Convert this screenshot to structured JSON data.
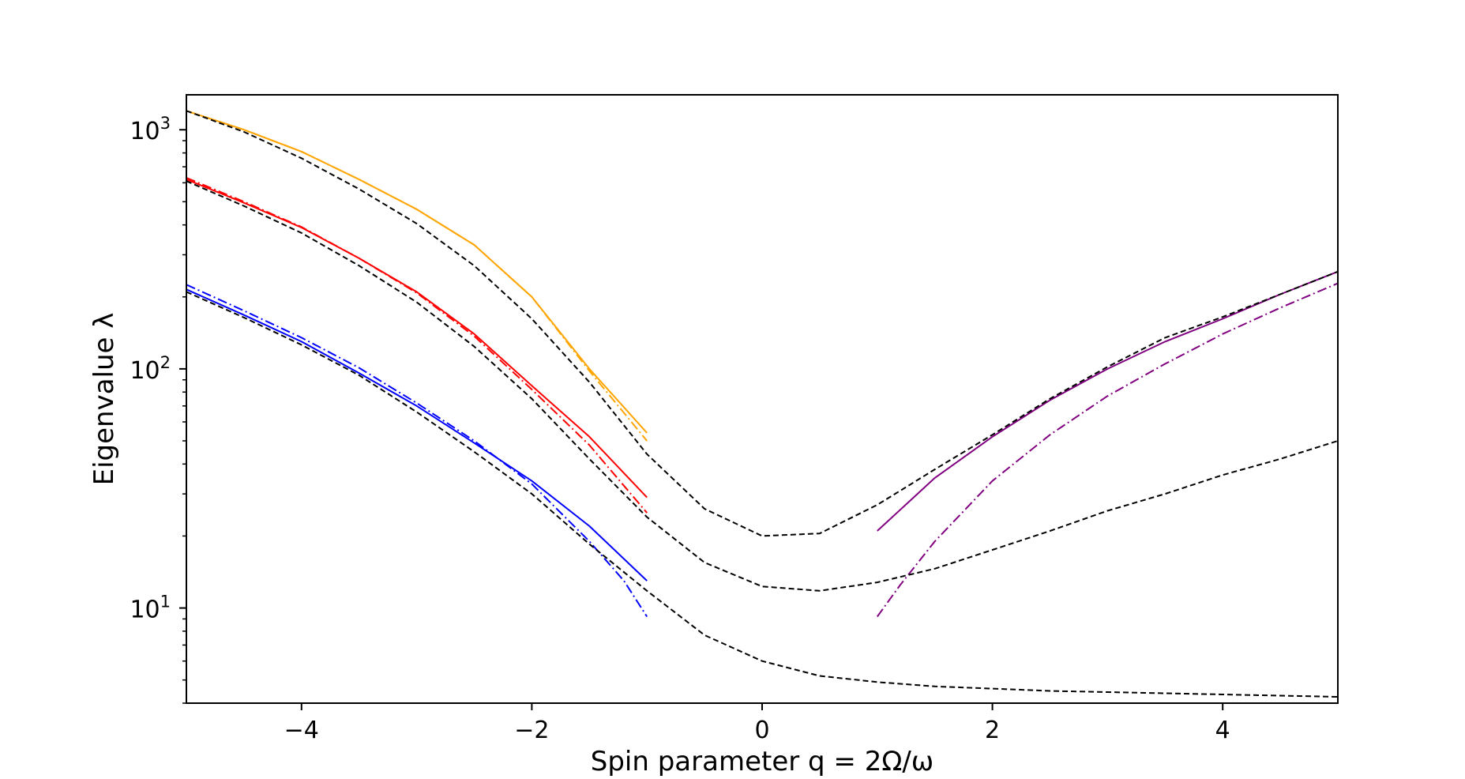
{
  "chart_data": {
    "type": "line",
    "title": "",
    "xlabel": "Spin parameter q = 2Ω/ω",
    "ylabel": "Eigenvalue λ",
    "xlim": [
      -5,
      5
    ],
    "ylim": [
      4,
      1400
    ],
    "yscale": "log",
    "grid": false,
    "x_ticks": [
      {
        "value": -4,
        "label": "−4"
      },
      {
        "value": -2,
        "label": "−2"
      },
      {
        "value": 0,
        "label": "0"
      },
      {
        "value": 2,
        "label": "2"
      },
      {
        "value": 4,
        "label": "4"
      }
    ],
    "y_ticks": [
      {
        "value": 10,
        "base": "10",
        "exp": "1"
      },
      {
        "value": 100,
        "base": "10",
        "exp": "2"
      },
      {
        "value": 1000,
        "base": "10",
        "exp": "3"
      }
    ],
    "colors": {
      "orange": "#ffa500",
      "red": "#ff0000",
      "blue": "#0000ff",
      "purple": "#800080",
      "black": "#000000"
    },
    "series": [
      {
        "color": "orange",
        "style": "solid",
        "x": [
          -5,
          -4.5,
          -4,
          -3.5,
          -3,
          -2.5,
          -2,
          -1.5,
          -1
        ],
        "y": [
          1200,
          1000,
          810,
          620,
          465,
          330,
          200,
          100,
          54
        ]
      },
      {
        "color": "orange",
        "style": "dashdot",
        "x": [
          -5,
          -4.5,
          -4,
          -3.5,
          -3,
          -2.5,
          -2,
          -1.5,
          -1
        ],
        "y": [
          1200,
          1000,
          810,
          620,
          465,
          330,
          200,
          98,
          50
        ]
      },
      {
        "color": "red",
        "style": "solid",
        "x": [
          -5,
          -4.5,
          -4,
          -3.5,
          -3,
          -2.5,
          -2,
          -1.5,
          -1
        ],
        "y": [
          620,
          495,
          390,
          290,
          210,
          140,
          85,
          52,
          29
        ]
      },
      {
        "color": "red",
        "style": "dashdot",
        "x": [
          -5,
          -4.5,
          -4,
          -3.5,
          -3,
          -2.5,
          -2,
          -1.5,
          -1
        ],
        "y": [
          630,
          500,
          392,
          290,
          208,
          137,
          82,
          48,
          25
        ]
      },
      {
        "color": "blue",
        "style": "solid",
        "x": [
          -5,
          -4.5,
          -4,
          -3.5,
          -3,
          -2.5,
          -2,
          -1.5,
          -1
        ],
        "y": [
          215,
          168,
          130,
          96,
          70,
          49,
          34,
          22,
          13
        ]
      },
      {
        "color": "blue",
        "style": "dashdot",
        "x": [
          -5,
          -4.5,
          -4,
          -3.5,
          -3,
          -2.5,
          -2,
          -1.5,
          -1.2,
          -1
        ],
        "y": [
          225,
          175,
          135,
          101,
          72,
          50,
          33,
          19,
          13,
          9.2
        ]
      },
      {
        "color": "purple",
        "style": "solid",
        "x": [
          1,
          1.5,
          2,
          2.5,
          3,
          3.5,
          4,
          4.5,
          5
        ],
        "y": [
          21,
          35,
          52,
          74,
          100,
          130,
          162,
          205,
          255
        ]
      },
      {
        "color": "purple",
        "style": "dashdot",
        "x": [
          1,
          1.2,
          1.5,
          2,
          2.5,
          3,
          3.5,
          4,
          4.5,
          5
        ],
        "y": [
          9.2,
          12.5,
          19,
          34,
          53,
          77,
          105,
          140,
          180,
          228
        ]
      },
      {
        "color": "black",
        "style": "dashed",
        "x": [
          -5,
          -4.5,
          -4,
          -3.5,
          -3,
          -2.5,
          -2,
          -1.5,
          -1,
          -0.5,
          0,
          0.5,
          1,
          1.5,
          2,
          2.5,
          3,
          3.5,
          4,
          4.5,
          5
        ],
        "y": [
          1200,
          980,
          760,
          565,
          405,
          270,
          162,
          88,
          44,
          26,
          20,
          20.5,
          27,
          38,
          53,
          75,
          102,
          135,
          165,
          205,
          255
        ]
      },
      {
        "color": "black",
        "style": "dashed",
        "x": [
          -5,
          -4.5,
          -4,
          -3.5,
          -3,
          -2.5,
          -2,
          -1.5,
          -1,
          -0.5,
          0,
          0.5,
          1,
          1.5,
          2,
          2.5,
          3,
          3.5,
          4,
          4.5,
          5
        ],
        "y": [
          610,
          480,
          370,
          270,
          190,
          124,
          75,
          42,
          24,
          15.5,
          12.3,
          11.8,
          12.8,
          14.6,
          17.5,
          21,
          25.5,
          30,
          36,
          42,
          50
        ]
      },
      {
        "color": "black",
        "style": "dashed",
        "x": [
          -5,
          -4.5,
          -4,
          -3.5,
          -3,
          -2.5,
          -2,
          -1.5,
          -1,
          -0.5,
          0,
          0.5,
          1,
          1.5,
          2,
          2.5,
          3,
          3.5,
          4,
          4.5,
          5
        ],
        "y": [
          210,
          164,
          126,
          94,
          66,
          45,
          30,
          18.5,
          11.8,
          7.7,
          6,
          5.2,
          4.9,
          4.7,
          4.6,
          4.5,
          4.45,
          4.4,
          4.35,
          4.3,
          4.25
        ]
      }
    ]
  }
}
